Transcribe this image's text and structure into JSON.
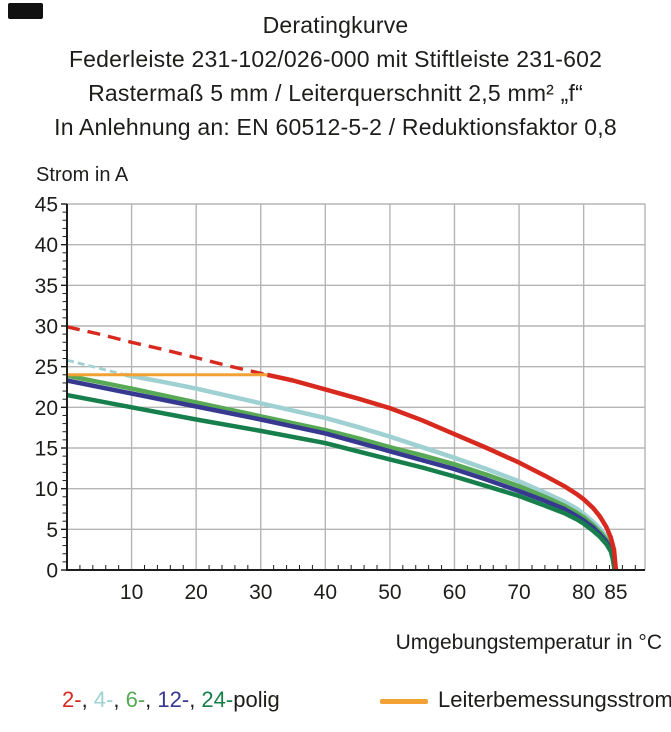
{
  "header": {
    "line1": "Deratingkurve",
    "line2": "Federleiste 231-102/026-000 mit Stiftleiste 231-602",
    "line3": "Rastermaß 5 mm / Leiterquerschnitt 2,5 mm² „f“",
    "line4": "In Anlehnung an: EN 60512-5-2 / Reduktionsfaktor 0,8"
  },
  "chart_data": {
    "type": "line",
    "title": "Deratingkurve",
    "xlabel": "Umgebungstemperatur in °C",
    "ylabel": "Strom in A",
    "xlim": [
      0,
      89.5
    ],
    "ylim": [
      0,
      45
    ],
    "xticks": [
      10,
      20,
      30,
      40,
      50,
      60,
      70,
      80,
      85
    ],
    "x_gridlines": [
      10,
      20,
      30,
      40,
      50,
      60,
      70,
      80
    ],
    "yticks": [
      0,
      5,
      10,
      15,
      20,
      25,
      30,
      35,
      40,
      45
    ],
    "x_minor_step": 2,
    "y_minor_step": 1,
    "grid": true,
    "colors": {
      "grid": "#b5b5b5",
      "axis": "#1d1d1b",
      "text": "#1d1d1b"
    },
    "series": [
      {
        "name": "4-polig",
        "color": "#9fd0d2",
        "width": 4.5,
        "segments": [
          {
            "style": "dashed",
            "width": 2.8,
            "dash": "7 4",
            "points": [
              [
                0,
                25.8
              ],
              [
                4,
                25.0
              ],
              [
                9,
                24.0
              ]
            ]
          },
          {
            "style": "solid",
            "points": [
              [
                9,
                24.0
              ],
              [
                15,
                23.1
              ],
              [
                20,
                22.3
              ],
              [
                25,
                21.4
              ],
              [
                30,
                20.5
              ],
              [
                35,
                19.6
              ],
              [
                40,
                18.7
              ],
              [
                45,
                17.6
              ],
              [
                50,
                16.4
              ],
              [
                55,
                15.1
              ],
              [
                60,
                13.8
              ],
              [
                65,
                12.4
              ],
              [
                70,
                10.9
              ],
              [
                74,
                9.5
              ],
              [
                77,
                8.4
              ],
              [
                79,
                7.5
              ],
              [
                80,
                6.9
              ],
              [
                81.5,
                5.9
              ],
              [
                82.5,
                5.1
              ],
              [
                83.5,
                4.1
              ],
              [
                84.2,
                3.0
              ],
              [
                84.7,
                1.8
              ],
              [
                84.95,
                0
              ]
            ]
          }
        ]
      },
      {
        "name": "6-polig",
        "color": "#57a956",
        "width": 4.5,
        "segments": [
          {
            "style": "solid",
            "points": [
              [
                0,
                23.9
              ],
              [
                10,
                22.3
              ],
              [
                20,
                20.6
              ],
              [
                30,
                18.9
              ],
              [
                40,
                17.2
              ],
              [
                45,
                16.2
              ],
              [
                50,
                15.1
              ],
              [
                55,
                14.1
              ],
              [
                60,
                13.0
              ],
              [
                65,
                11.7
              ],
              [
                70,
                10.3
              ],
              [
                74,
                9.0
              ],
              [
                77,
                7.9
              ],
              [
                79,
                7.0
              ],
              [
                80,
                6.5
              ],
              [
                81.5,
                5.5
              ],
              [
                82.5,
                4.7
              ],
              [
                83.5,
                3.8
              ],
              [
                84.2,
                2.8
              ],
              [
                84.6,
                1.7
              ],
              [
                84.9,
                0
              ]
            ]
          }
        ]
      },
      {
        "name": "12-polig",
        "color": "#37388f",
        "width": 4.5,
        "segments": [
          {
            "style": "solid",
            "points": [
              [
                0,
                23.3
              ],
              [
                10,
                21.7
              ],
              [
                20,
                20.1
              ],
              [
                30,
                18.5
              ],
              [
                40,
                16.8
              ],
              [
                45,
                15.7
              ],
              [
                50,
                14.6
              ],
              [
                55,
                13.5
              ],
              [
                60,
                12.4
              ],
              [
                65,
                11.1
              ],
              [
                70,
                9.7
              ],
              [
                74,
                8.5
              ],
              [
                77,
                7.5
              ],
              [
                79,
                6.6
              ],
              [
                80,
                6.1
              ],
              [
                81.5,
                5.2
              ],
              [
                82.5,
                4.4
              ],
              [
                83.5,
                3.5
              ],
              [
                84.2,
                2.6
              ],
              [
                84.6,
                1.5
              ],
              [
                84.85,
                0
              ]
            ]
          }
        ]
      },
      {
        "name": "24-polig",
        "color": "#167f4c",
        "width": 4.5,
        "segments": [
          {
            "style": "solid",
            "points": [
              [
                0,
                21.5
              ],
              [
                10,
                20.0
              ],
              [
                20,
                18.5
              ],
              [
                30,
                17.1
              ],
              [
                40,
                15.6
              ],
              [
                45,
                14.6
              ],
              [
                50,
                13.6
              ],
              [
                55,
                12.6
              ],
              [
                60,
                11.5
              ],
              [
                65,
                10.3
              ],
              [
                70,
                9.1
              ],
              [
                74,
                7.9
              ],
              [
                77,
                7.0
              ],
              [
                79,
                6.2
              ],
              [
                80,
                5.7
              ],
              [
                81.5,
                4.8
              ],
              [
                82.5,
                4.1
              ],
              [
                83.5,
                3.2
              ],
              [
                84.2,
                2.3
              ],
              [
                84.5,
                1.4
              ],
              [
                84.8,
                0
              ]
            ]
          }
        ]
      },
      {
        "name": "2-polig",
        "color": "#d8291f",
        "width": 4.5,
        "segments": [
          {
            "style": "dashed",
            "width": 3.4,
            "dash": "13 8",
            "points": [
              [
                0,
                29.9
              ],
              [
                5,
                29.0
              ],
              [
                10,
                28.0
              ],
              [
                15,
                27.1
              ],
              [
                20,
                26.1
              ],
              [
                25,
                25.1
              ],
              [
                31,
                24.0
              ]
            ]
          },
          {
            "style": "solid",
            "points": [
              [
                31,
                24.0
              ],
              [
                35,
                23.3
              ],
              [
                40,
                22.2
              ],
              [
                45,
                21.1
              ],
              [
                50,
                19.9
              ],
              [
                55,
                18.4
              ],
              [
                60,
                16.7
              ],
              [
                65,
                15.0
              ],
              [
                70,
                13.2
              ],
              [
                74,
                11.6
              ],
              [
                77,
                10.3
              ],
              [
                79,
                9.3
              ],
              [
                80,
                8.7
              ],
              [
                81.5,
                7.6
              ],
              [
                82.5,
                6.6
              ],
              [
                83.5,
                5.3
              ],
              [
                84.2,
                4.0
              ],
              [
                84.7,
                2.5
              ],
              [
                85,
                0
              ]
            ]
          }
        ]
      },
      {
        "name": "Leiterbemessungsstrom",
        "color": "#f2a235",
        "width": 3,
        "segments": [
          {
            "style": "solid",
            "points": [
              [
                0,
                24
              ],
              [
                31,
                24
              ]
            ]
          }
        ]
      }
    ]
  },
  "legend": {
    "poles": [
      {
        "label": "2-",
        "color": "#d8291f"
      },
      {
        "label": "4-",
        "color": "#9fd0d2"
      },
      {
        "label": "6-",
        "color": "#57a956"
      },
      {
        "label": "12-",
        "color": "#37388f"
      },
      {
        "label": "24-",
        "color": "#167f4c"
      }
    ],
    "separator": ", ",
    "poles_suffix": "polig",
    "line_label": "Leiterbemessungsstrom",
    "line_color": "#f2a235"
  }
}
